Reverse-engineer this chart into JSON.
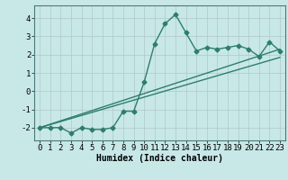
{
  "xlabel": "Humidex (Indice chaleur)",
  "x": [
    0,
    1,
    2,
    3,
    4,
    5,
    6,
    7,
    8,
    9,
    10,
    11,
    12,
    13,
    14,
    15,
    16,
    17,
    18,
    19,
    20,
    21,
    22,
    23
  ],
  "y_curve": [
    -2.0,
    -2.0,
    -2.0,
    -2.3,
    -2.0,
    -2.1,
    -2.1,
    -2.0,
    -1.1,
    -1.1,
    0.5,
    2.6,
    3.7,
    4.2,
    3.2,
    2.2,
    2.4,
    2.3,
    2.4,
    2.5,
    2.3,
    1.9,
    2.7,
    2.2
  ],
  "line1_x": [
    0,
    23
  ],
  "line1_y": [
    -2.0,
    2.3
  ],
  "line2_x": [
    0,
    23
  ],
  "line2_y": [
    -2.0,
    1.85
  ],
  "ylim": [
    -2.7,
    4.7
  ],
  "xlim": [
    -0.5,
    23.5
  ],
  "yticks": [
    -2,
    -1,
    0,
    1,
    2,
    3,
    4
  ],
  "xticks": [
    0,
    1,
    2,
    3,
    4,
    5,
    6,
    7,
    8,
    9,
    10,
    11,
    12,
    13,
    14,
    15,
    16,
    17,
    18,
    19,
    20,
    21,
    22,
    23
  ],
  "curve_color": "#2e7d6e",
  "line_color": "#2e7d6e",
  "bg_color": "#c8e8e8",
  "grid_color": "#b0c8c8",
  "marker": "D",
  "marker_size": 2.5,
  "line_width": 1.0,
  "font_size_label": 7,
  "font_size_tick": 6.5
}
